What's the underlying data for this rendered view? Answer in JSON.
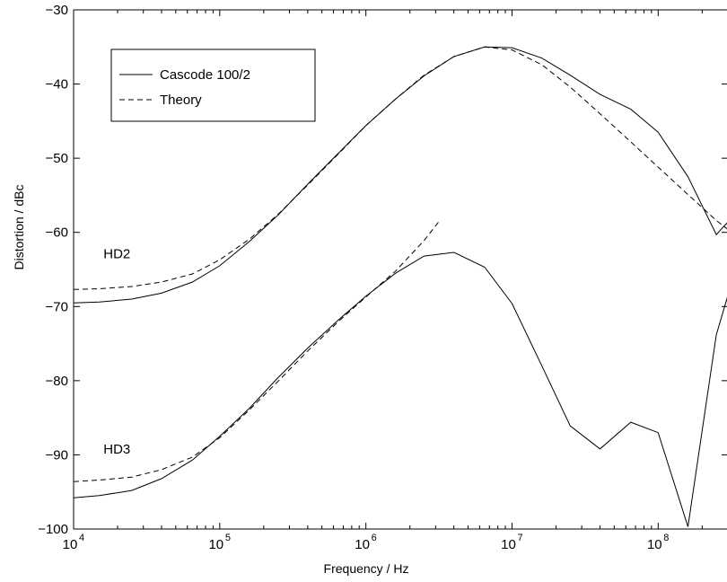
{
  "chart_data": {
    "type": "line",
    "xscale": "log",
    "xlim": [
      10000,
      300000000
    ],
    "ylim": [
      -100,
      -30
    ],
    "xlabel": "Frequency / Hz",
    "ylabel": "Distortion / dBc",
    "grid": false,
    "legend_position": "top-left",
    "x_ticks": [
      {
        "value": 10000,
        "base": "10",
        "exp": "4"
      },
      {
        "value": 100000,
        "base": "10",
        "exp": "5"
      },
      {
        "value": 1000000,
        "base": "10",
        "exp": "6"
      },
      {
        "value": 10000000,
        "base": "10",
        "exp": "7"
      },
      {
        "value": 100000000,
        "base": "10",
        "exp": "8"
      }
    ],
    "y_ticks": [
      -100,
      -90,
      -80,
      -70,
      -60,
      -50,
      -40,
      -30
    ],
    "y_tick_labels": [
      "−100",
      "−90",
      "−80",
      "−70",
      "−60",
      "−50",
      "−40",
      "−30"
    ],
    "legend": [
      {
        "label": "Cascode 100/2",
        "style": "solid"
      },
      {
        "label": "Theory",
        "style": "dashed"
      }
    ],
    "annotations": [
      {
        "text": "HD2",
        "x": 16000,
        "y": -63.5
      },
      {
        "text": "HD3",
        "x": 16000,
        "y": -89.8
      }
    ],
    "series": [
      {
        "style": "solid",
        "color": "#000000",
        "points": [
          [
            10000,
            -69.5
          ],
          [
            15000,
            -69.4
          ],
          [
            25000,
            -69.0
          ],
          [
            40000,
            -68.2
          ],
          [
            65000,
            -66.7
          ],
          [
            100000,
            -64.5
          ],
          [
            160000,
            -61.2
          ],
          [
            250000,
            -57.7
          ],
          [
            400000,
            -53.5
          ],
          [
            650000,
            -49.3
          ],
          [
            1000000,
            -45.6
          ],
          [
            1600000,
            -42.0
          ],
          [
            2500000,
            -38.9
          ],
          [
            4000000,
            -36.3
          ],
          [
            6500000,
            -35.0
          ],
          [
            10000000,
            -35.1
          ],
          [
            16000000,
            -36.5
          ],
          [
            25000000,
            -38.8
          ],
          [
            40000000,
            -41.4
          ],
          [
            65000000,
            -43.4
          ],
          [
            100000000,
            -46.5
          ],
          [
            160000000,
            -52.5
          ],
          [
            250000000,
            -60.3
          ],
          [
            300000000,
            -58.6
          ]
        ]
      },
      {
        "style": "dashed",
        "color": "#000000",
        "points": [
          [
            10000,
            -67.7
          ],
          [
            15000,
            -67.6
          ],
          [
            25000,
            -67.3
          ],
          [
            40000,
            -66.7
          ],
          [
            65000,
            -65.6
          ],
          [
            100000,
            -63.7
          ],
          [
            160000,
            -60.9
          ],
          [
            250000,
            -57.6
          ],
          [
            400000,
            -53.6
          ],
          [
            650000,
            -49.4
          ],
          [
            1000000,
            -45.6
          ],
          [
            1600000,
            -42.0
          ],
          [
            2500000,
            -38.8
          ],
          [
            4000000,
            -36.3
          ],
          [
            6500000,
            -35.0
          ],
          [
            10000000,
            -35.4
          ],
          [
            16000000,
            -37.4
          ],
          [
            25000000,
            -40.4
          ],
          [
            40000000,
            -44.0
          ],
          [
            65000000,
            -47.8
          ],
          [
            100000000,
            -51.2
          ],
          [
            160000000,
            -54.9
          ],
          [
            250000000,
            -58.4
          ],
          [
            300000000,
            -59.6
          ]
        ]
      },
      {
        "style": "solid",
        "color": "#000000",
        "points": [
          [
            10000,
            -95.8
          ],
          [
            15000,
            -95.5
          ],
          [
            25000,
            -94.8
          ],
          [
            40000,
            -93.2
          ],
          [
            65000,
            -90.7
          ],
          [
            100000,
            -87.5
          ],
          [
            160000,
            -83.7
          ],
          [
            250000,
            -79.6
          ],
          [
            400000,
            -75.6
          ],
          [
            650000,
            -71.8
          ],
          [
            1000000,
            -68.6
          ],
          [
            1600000,
            -65.5
          ],
          [
            2500000,
            -63.2
          ],
          [
            4000000,
            -62.7
          ],
          [
            6500000,
            -64.7
          ],
          [
            10000000,
            -69.6
          ],
          [
            16000000,
            -78.0
          ],
          [
            25000000,
            -86.1
          ],
          [
            40000000,
            -89.2
          ],
          [
            65000000,
            -85.6
          ],
          [
            100000000,
            -87.0
          ],
          [
            160000000,
            -99.7
          ],
          [
            250000000,
            -73.8
          ],
          [
            300000000,
            -68.5
          ]
        ]
      },
      {
        "style": "dashed",
        "color": "#000000",
        "points": [
          [
            10000,
            -93.6
          ],
          [
            15000,
            -93.4
          ],
          [
            25000,
            -93.0
          ],
          [
            40000,
            -92.0
          ],
          [
            65000,
            -90.3
          ],
          [
            100000,
            -87.7
          ],
          [
            160000,
            -83.9
          ],
          [
            250000,
            -80.1
          ],
          [
            400000,
            -76.0
          ],
          [
            650000,
            -72.0
          ],
          [
            1000000,
            -68.7
          ],
          [
            1600000,
            -65.2
          ],
          [
            2500000,
            -61.1
          ],
          [
            3200000,
            -58.4
          ]
        ]
      }
    ]
  }
}
